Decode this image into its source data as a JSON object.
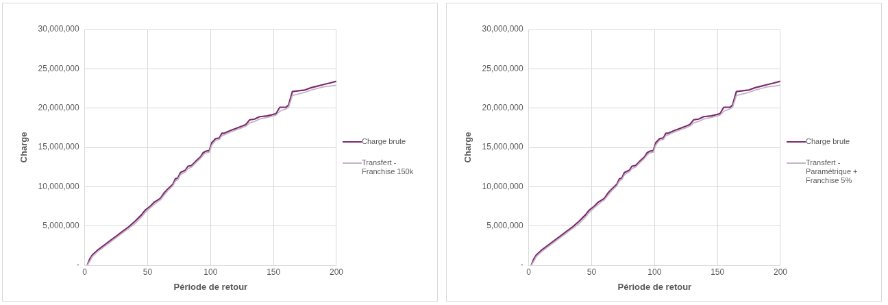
{
  "chart_data": [
    {
      "type": "line",
      "xlabel": "Période de retour",
      "ylabel": "Charge",
      "xlim": [
        0,
        200
      ],
      "xticks": [
        0,
        50,
        100,
        150,
        200
      ],
      "ylim": [
        0,
        30000000
      ],
      "yticks": [
        {
          "value": 0,
          "label": "-"
        },
        {
          "value": 5000000,
          "label": "5,000,000"
        },
        {
          "value": 10000000,
          "label": "10,000,000"
        },
        {
          "value": 15000000,
          "label": "15,000,000"
        },
        {
          "value": 20000000,
          "label": "20,000,000"
        },
        {
          "value": 25000000,
          "label": "25,000,000"
        },
        {
          "value": 30000000,
          "label": "30,000,000"
        }
      ],
      "grid": true,
      "legend": "right",
      "marker": "none",
      "x": [
        2,
        4,
        6,
        10,
        15,
        20,
        25,
        30,
        35,
        40,
        45,
        48,
        52,
        55,
        58,
        60,
        63,
        66,
        70,
        72,
        74,
        76,
        80,
        82,
        85,
        88,
        92,
        94,
        96,
        99,
        101,
        104,
        107,
        109,
        111,
        115,
        120,
        125,
        128,
        131,
        135,
        139,
        145,
        150,
        152,
        155,
        160,
        162,
        165,
        170,
        175,
        180,
        185,
        190,
        195,
        200
      ],
      "series": [
        {
          "name": "Charge brute",
          "color": "#7b2a6e",
          "values": [
            0,
            800000,
            1300000,
            1900000,
            2500000,
            3100000,
            3700000,
            4300000,
            4900000,
            5600000,
            6400000,
            7000000,
            7500000,
            8000000,
            8300000,
            8500000,
            9200000,
            9700000,
            10300000,
            11000000,
            11100000,
            11800000,
            12100000,
            12600000,
            12700000,
            13200000,
            13800000,
            14300000,
            14500000,
            14600000,
            15600000,
            16100000,
            16200000,
            16800000,
            16800000,
            17100000,
            17400000,
            17700000,
            17900000,
            18500000,
            18600000,
            18900000,
            19000000,
            19200000,
            19300000,
            20100000,
            20100000,
            20400000,
            22100000,
            22200000,
            22300000,
            22600000,
            22800000,
            23000000,
            23200000,
            23400000
          ]
        },
        {
          "name": "Transfert - Franchise 150k",
          "color": "#c3b2c4",
          "values": [
            0,
            500000,
            1100000,
            1700000,
            2300000,
            2900000,
            3500000,
            4100000,
            4700000,
            5300000,
            6100000,
            6700000,
            7300000,
            7700000,
            8100000,
            8300000,
            8900000,
            9500000,
            10100000,
            10700000,
            10900000,
            11500000,
            11900000,
            12300000,
            12500000,
            13000000,
            13600000,
            14000000,
            14300000,
            14400000,
            15300000,
            15900000,
            16000000,
            16500000,
            16600000,
            16900000,
            17200000,
            17500000,
            17700000,
            18100000,
            18300000,
            18600000,
            18800000,
            19000000,
            19100000,
            19600000,
            19900000,
            20100000,
            21600000,
            21800000,
            22000000,
            22300000,
            22500000,
            22700000,
            22800000,
            22900000
          ]
        }
      ]
    },
    {
      "type": "line",
      "xlabel": "Période de retour",
      "ylabel": "Charge",
      "xlim": [
        0,
        200
      ],
      "xticks": [
        0,
        50,
        100,
        150,
        200
      ],
      "ylim": [
        0,
        30000000
      ],
      "yticks": [
        {
          "value": 0,
          "label": "-"
        },
        {
          "value": 5000000,
          "label": "5,000,000"
        },
        {
          "value": 10000000,
          "label": "10,000,000"
        },
        {
          "value": 15000000,
          "label": "15,000,000"
        },
        {
          "value": 20000000,
          "label": "20,000,000"
        },
        {
          "value": 25000000,
          "label": "25,000,000"
        },
        {
          "value": 30000000,
          "label": "30,000,000"
        }
      ],
      "grid": true,
      "legend": "right",
      "marker": "none",
      "x": [
        2,
        4,
        6,
        10,
        15,
        20,
        25,
        30,
        35,
        40,
        45,
        48,
        52,
        55,
        58,
        60,
        63,
        66,
        70,
        72,
        74,
        76,
        80,
        82,
        85,
        88,
        92,
        94,
        96,
        99,
        101,
        104,
        107,
        109,
        111,
        115,
        120,
        125,
        128,
        131,
        135,
        139,
        145,
        150,
        152,
        155,
        160,
        162,
        165,
        170,
        175,
        180,
        185,
        190,
        195,
        200
      ],
      "series": [
        {
          "name": "Charge brute",
          "color": "#7b2a6e",
          "values": [
            0,
            800000,
            1300000,
            1900000,
            2500000,
            3100000,
            3700000,
            4300000,
            4900000,
            5600000,
            6400000,
            7000000,
            7500000,
            8000000,
            8300000,
            8500000,
            9200000,
            9700000,
            10300000,
            11000000,
            11100000,
            11800000,
            12100000,
            12600000,
            12700000,
            13200000,
            13800000,
            14300000,
            14500000,
            14600000,
            15600000,
            16100000,
            16200000,
            16800000,
            16800000,
            17100000,
            17400000,
            17700000,
            17900000,
            18500000,
            18600000,
            18900000,
            19000000,
            19200000,
            19300000,
            20100000,
            20100000,
            20400000,
            22100000,
            22200000,
            22300000,
            22600000,
            22800000,
            23000000,
            23200000,
            23400000
          ]
        },
        {
          "name": "Transfert - Paramétrique + Franchise 5%",
          "color": "#c3b2c4",
          "values": [
            0,
            500000,
            1100000,
            1700000,
            2300000,
            2900000,
            3500000,
            4100000,
            4700000,
            5300000,
            6100000,
            6700000,
            7300000,
            7700000,
            8100000,
            8300000,
            8900000,
            9500000,
            10100000,
            10700000,
            10900000,
            11500000,
            11900000,
            12300000,
            12500000,
            13000000,
            13600000,
            14000000,
            14300000,
            14400000,
            15300000,
            15900000,
            16000000,
            16500000,
            16600000,
            16900000,
            17200000,
            17500000,
            17700000,
            18100000,
            18300000,
            18600000,
            18800000,
            19000000,
            19100000,
            19600000,
            19900000,
            20100000,
            21600000,
            21800000,
            22000000,
            22300000,
            22500000,
            22700000,
            22800000,
            22900000
          ]
        }
      ]
    }
  ]
}
